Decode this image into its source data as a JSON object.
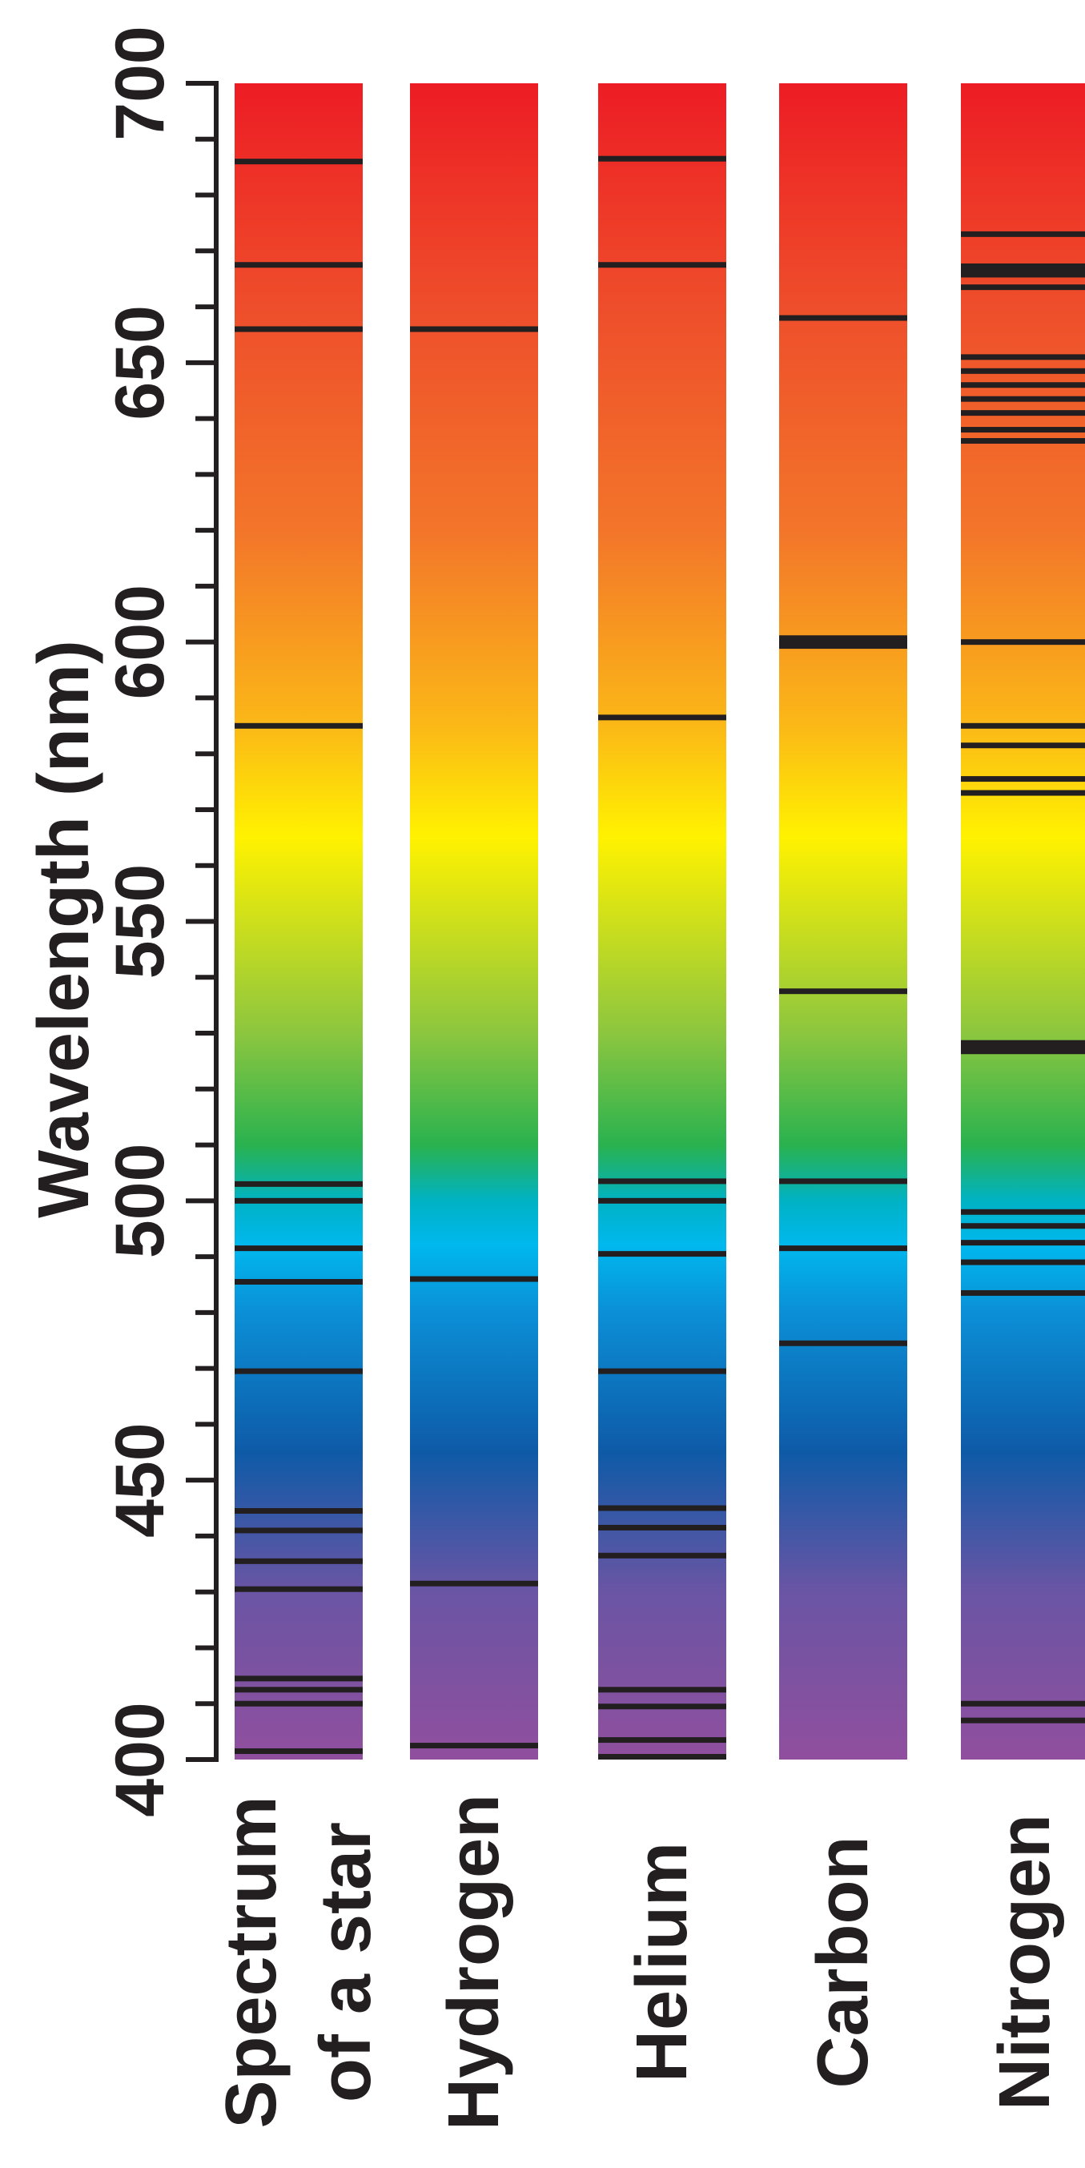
{
  "chart_data": {
    "type": "spectrum",
    "title": "",
    "xlabel": "",
    "ylabel": "Wavelength (nm)",
    "ylim": [
      400,
      700
    ],
    "yticks": [
      400,
      450,
      500,
      550,
      600,
      650,
      700
    ],
    "minor_tick_step": 10,
    "grid": false,
    "colors": {
      "axis": "#231f20",
      "line": "#231f20",
      "spectrum_stops": [
        {
          "nm": 400,
          "color": "#904f9e"
        },
        {
          "nm": 430,
          "color": "#6a55a4"
        },
        {
          "nm": 455,
          "color": "#0e5aa7"
        },
        {
          "nm": 480,
          "color": "#0b8fd6"
        },
        {
          "nm": 492,
          "color": "#00b8ee"
        },
        {
          "nm": 500,
          "color": "#00b2c4"
        },
        {
          "nm": 510,
          "color": "#2ab24f"
        },
        {
          "nm": 530,
          "color": "#8cc63f"
        },
        {
          "nm": 565,
          "color": "#fff200"
        },
        {
          "nm": 585,
          "color": "#fbb817"
        },
        {
          "nm": 620,
          "color": "#f3752a"
        },
        {
          "nm": 660,
          "color": "#ee4e2b"
        },
        {
          "nm": 700,
          "color": "#ed1c24"
        }
      ]
    },
    "categories": [
      {
        "label_lines": [
          "Spectrum",
          "of a star"
        ],
        "lines": [
          {
            "nm": 401.5
          },
          {
            "nm": 410
          },
          {
            "nm": 412.5
          },
          {
            "nm": 414.5
          },
          {
            "nm": 430.5
          },
          {
            "nm": 435.5
          },
          {
            "nm": 441
          },
          {
            "nm": 444.5
          },
          {
            "nm": 469.5
          },
          {
            "nm": 485.5
          },
          {
            "nm": 491.5
          },
          {
            "nm": 500
          },
          {
            "nm": 503
          },
          {
            "nm": 585
          },
          {
            "nm": 656
          },
          {
            "nm": 667.5
          },
          {
            "nm": 686
          }
        ]
      },
      {
        "label_lines": [
          "Hydrogen"
        ],
        "lines": [
          {
            "nm": 402.5
          },
          {
            "nm": 431.5
          },
          {
            "nm": 486
          },
          {
            "nm": 656
          }
        ]
      },
      {
        "label_lines": [
          "Helium"
        ],
        "lines": [
          {
            "nm": 400.5
          },
          {
            "nm": 403.5
          },
          {
            "nm": 409.5
          },
          {
            "nm": 412.5
          },
          {
            "nm": 436.5
          },
          {
            "nm": 441.5
          },
          {
            "nm": 445
          },
          {
            "nm": 469.5
          },
          {
            "nm": 490.5
          },
          {
            "nm": 500
          },
          {
            "nm": 503.5
          },
          {
            "nm": 586.5
          },
          {
            "nm": 667.5
          },
          {
            "nm": 686.5
          }
        ]
      },
      {
        "label_lines": [
          "Carbon"
        ],
        "lines": [
          {
            "nm": 474.5
          },
          {
            "nm": 491.5
          },
          {
            "nm": 503.5
          },
          {
            "nm": 537.5
          },
          {
            "nm": 600,
            "width": 2.4
          },
          {
            "nm": 658
          }
        ]
      },
      {
        "label_lines": [
          "Nitrogen"
        ],
        "lines": [
          {
            "nm": 407
          },
          {
            "nm": 410
          },
          {
            "nm": 483.5
          },
          {
            "nm": 489
          },
          {
            "nm": 492.5
          },
          {
            "nm": 495.5
          },
          {
            "nm": 498
          },
          {
            "nm": 527.5,
            "width": 2.5
          },
          {
            "nm": 573
          },
          {
            "nm": 575.5
          },
          {
            "nm": 581.5
          },
          {
            "nm": 585
          },
          {
            "nm": 600
          },
          {
            "nm": 636
          },
          {
            "nm": 638
          },
          {
            "nm": 641
          },
          {
            "nm": 643.5
          },
          {
            "nm": 646
          },
          {
            "nm": 648.5
          },
          {
            "nm": 651
          },
          {
            "nm": 663.5
          },
          {
            "nm": 666.5,
            "width": 2.5
          },
          {
            "nm": 673
          }
        ]
      }
    ]
  }
}
